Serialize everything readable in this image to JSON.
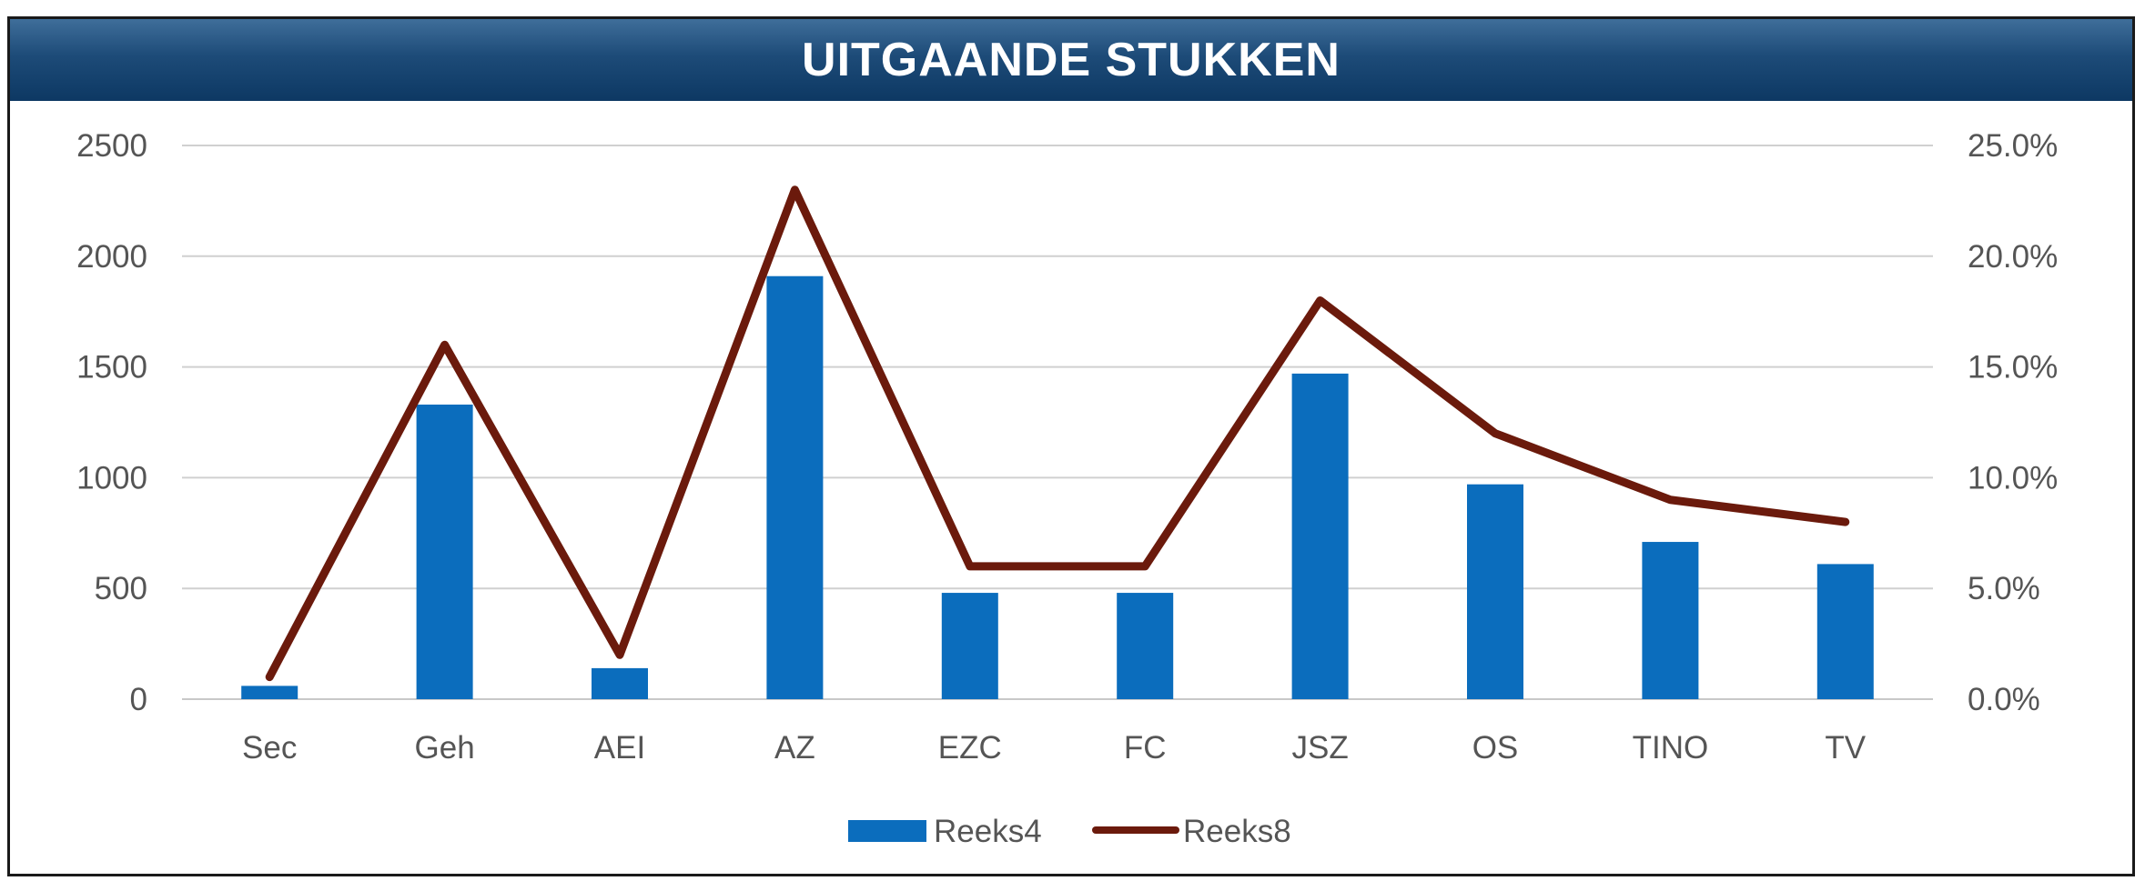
{
  "header": {
    "title": "UITGAANDE STUKKEN"
  },
  "colors": {
    "bar": "#0b6dbd",
    "line": "#6b1a0c",
    "header": "#0d3863",
    "grid": "#d0d0d0"
  },
  "chart_data": {
    "type": "bar",
    "title": "UITGAANDE STUKKEN",
    "categories": [
      "Sec",
      "Geh",
      "AEI",
      "AZ",
      "EZC",
      "FC",
      "JSZ",
      "OS",
      "TINO",
      "TV"
    ],
    "series": [
      {
        "name": "Reeks4",
        "type": "bar",
        "axis": "left",
        "values": [
          60,
          1330,
          140,
          1910,
          480,
          480,
          1470,
          970,
          710,
          610
        ]
      },
      {
        "name": "Reeks8",
        "type": "line",
        "axis": "right",
        "values": [
          0.01,
          0.16,
          0.02,
          0.23,
          0.06,
          0.06,
          0.18,
          0.12,
          0.09,
          0.08
        ]
      }
    ],
    "ylim": [
      0,
      2500
    ],
    "y_ticks": [
      "0",
      "500",
      "1000",
      "1500",
      "2000",
      "2500"
    ],
    "y2lim": [
      0,
      0.25
    ],
    "y2_ticks": [
      "0.0%",
      "5.0%",
      "10.0%",
      "15.0%",
      "20.0%",
      "25.0%"
    ],
    "grid": true,
    "legend": "bottom"
  }
}
